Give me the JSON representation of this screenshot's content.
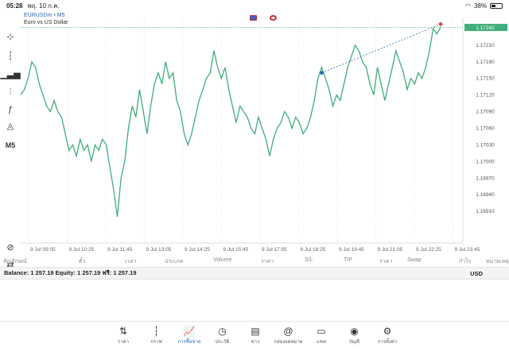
{
  "status": {
    "time": "05:28",
    "date": "พฤ. 10 ก.ค.",
    "battery": "38%",
    "battery_level": 0.38
  },
  "toolbar": [
    {
      "name": "crosshair-icon",
      "glyph": "⊹"
    },
    {
      "name": "candles-icon",
      "glyph": "┆"
    },
    {
      "name": "bar-chart-icon",
      "glyph": "▁▃▅"
    },
    {
      "name": "indicators-icon",
      "glyph": "⫶"
    },
    {
      "name": "function-icon",
      "glyph": "ƒ"
    },
    {
      "name": "objects-icon",
      "glyph": "◬"
    },
    {
      "name": "timeframe-label",
      "glyph": "M5"
    },
    {
      "name": "zoom-icon",
      "glyph": "⊘"
    },
    {
      "name": "trade-icon",
      "glyph": "⇄"
    }
  ],
  "chart": {
    "symbol": "EURUSDm",
    "timeframe": "M5",
    "description": "Euro vs US Dollar",
    "current_price_label": "1.17242",
    "colors": {
      "line": "#3fae7a",
      "grid": "#e3e3e3",
      "current": "#3fae7a",
      "price_tag": "#3fae7a",
      "buy_marker": "#2a6ab8",
      "sell_marker": "#e04848",
      "trend": "#2a6ab8"
    }
  },
  "chart_data": {
    "type": "line",
    "ylim": [
      1.1687,
      1.1726
    ],
    "y_ticks": [
      "1.17242",
      "1.17210",
      "1.17180",
      "1.17150",
      "1.17120",
      "1.17090",
      "1.17060",
      "1.17030",
      "1.17000",
      "1.16970",
      "1.16940",
      "1.16910"
    ],
    "x_ticks": [
      "9 Jul 09:05",
      "9 Jul 10:25",
      "9 Jul 11:45",
      "9 Jul 13:05",
      "9 Jul 14:25",
      "9 Jul 15:45",
      "9 Jul 17:05",
      "9 Jul 18:25",
      "9 Jul 19:45",
      "9 Jul 21:05",
      "9 Jul 22:25",
      "9 Jul 23:45"
    ],
    "series": [
      {
        "values": [
          1.1712,
          1.1713,
          1.1715,
          1.1718,
          1.1717,
          1.1714,
          1.1712,
          1.171,
          1.1709,
          1.1711,
          1.1709,
          1.1708,
          1.1705,
          1.1702,
          1.1703,
          1.1701,
          1.1704,
          1.1702,
          1.1703,
          1.17,
          1.1703,
          1.1702,
          1.1704,
          1.1703,
          1.1699,
          1.1695,
          1.169,
          1.1697,
          1.17,
          1.1706,
          1.171,
          1.1708,
          1.1713,
          1.1709,
          1.1705,
          1.171,
          1.1714,
          1.1716,
          1.1714,
          1.1718,
          1.1715,
          1.1716,
          1.1711,
          1.1709,
          1.1705,
          1.1703,
          1.1705,
          1.1708,
          1.1711,
          1.1713,
          1.1715,
          1.1716,
          1.172,
          1.1717,
          1.1715,
          1.1717,
          1.1713,
          1.171,
          1.1707,
          1.171,
          1.1709,
          1.1708,
          1.1706,
          1.1705,
          1.1708,
          1.1706,
          1.1704,
          1.1701,
          1.1704,
          1.1706,
          1.1707,
          1.1709,
          1.1708,
          1.1706,
          1.1708,
          1.1707,
          1.1705,
          1.1706,
          1.1708,
          1.1711,
          1.1715,
          1.1717,
          1.1715,
          1.1713,
          1.171,
          1.1712,
          1.1711,
          1.1714,
          1.1717,
          1.1719,
          1.1721,
          1.172,
          1.1718,
          1.1717,
          1.1714,
          1.1712,
          1.1717,
          1.1714,
          1.1711,
          1.1714,
          1.1717,
          1.172,
          1.1718,
          1.1716,
          1.1713,
          1.1715,
          1.1714,
          1.1716,
          1.1715,
          1.1717,
          1.172,
          1.1724,
          1.1723,
          1.17242
        ]
      }
    ],
    "trade": {
      "entry_index": 81,
      "entry_price": 1.1716,
      "exit_index": 113,
      "exit_price": 1.17248
    }
  },
  "table_header": [
    "สัญลักษณ์",
    "ตั๋ว",
    "เวลา",
    "ประเภท",
    "Volume",
    "ราคา",
    "S/L",
    "T/P",
    "ราคา",
    "Swap",
    "กำไร",
    "หมายเหตุ"
  ],
  "account": {
    "text": "Balance: 1 257.19 Equity: 1 257.19 ฟรี: 1 257.19",
    "currency": "USD"
  },
  "tabs": [
    {
      "name": "tab-quotes",
      "label": "ราคา",
      "glyph": "⇅",
      "active": false
    },
    {
      "name": "tab-chart",
      "label": "กราฟ",
      "glyph": "┆",
      "active": false
    },
    {
      "name": "tab-trade",
      "label": "การซื้อขาย",
      "glyph": "📈",
      "active": true
    },
    {
      "name": "tab-history",
      "label": "ประวัติ",
      "glyph": "◷",
      "active": false
    },
    {
      "name": "tab-news",
      "label": "ข่าว",
      "glyph": "▤",
      "active": false
    },
    {
      "name": "tab-mailbox",
      "label": "กล่องจดหมาย",
      "glyph": "@",
      "active": false
    },
    {
      "name": "tab-chat",
      "label": "แชท",
      "glyph": "▭",
      "active": false
    },
    {
      "name": "tab-accounts",
      "label": "บัญชี",
      "glyph": "◉",
      "active": false
    },
    {
      "name": "tab-settings",
      "label": "การตั้งค่า",
      "glyph": "⚙",
      "active": false
    }
  ]
}
